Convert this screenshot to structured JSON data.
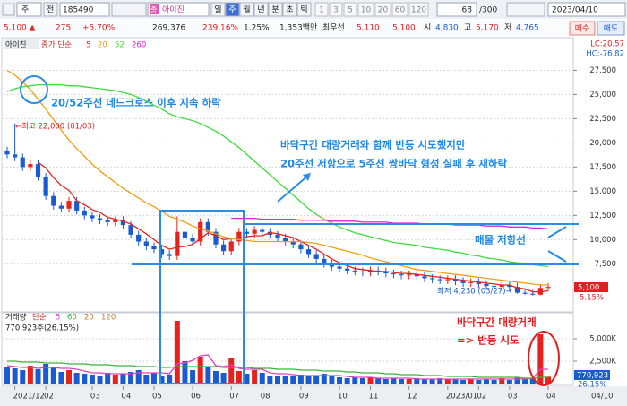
{
  "toolbar": {
    "market": "주",
    "scope": "전",
    "code": "185490",
    "name_badge": "종",
    "name": "아이진",
    "periods": [
      "일",
      "주",
      "월",
      "년",
      "분",
      "초",
      "틱"
    ],
    "intervals": [
      "1",
      "3",
      "5",
      "10",
      "20",
      "60",
      "120"
    ],
    "count": "68",
    "count_max": "/300",
    "date": "2023/04/10"
  },
  "quote": {
    "price": "5,100 ▲",
    "change": "275",
    "change_pct": "+5.70%",
    "volume": "269,376",
    "volume_ratio": "239.16%",
    "turnover": "1.25%",
    "amount": "1,353백만",
    "best_label": "최우선",
    "best_ask": "5,110",
    "best_bid": "5,100",
    "open_label": "시",
    "open": "4,830",
    "high_label": "고",
    "high": "5,170",
    "low_label": "저",
    "low": "4,765",
    "buy": "매수",
    "sell": "매도"
  },
  "chart_data": [
    {
      "type": "candlestick",
      "title": "아이진",
      "ma_label": "종가 단순",
      "up_color": "#e8211f",
      "down_color": "#1a5bd1",
      "open": [
        19200,
        18800,
        18500,
        17500,
        17800,
        16500,
        14500,
        13500,
        13200,
        14000,
        13000,
        12500,
        12200,
        12000,
        11800,
        12000,
        11500,
        10500,
        9800,
        9300,
        9000,
        8500,
        8300,
        10800,
        10200,
        9800,
        11800,
        10800,
        9500,
        8800,
        9800,
        10800,
        10600,
        11000,
        10800,
        10500,
        10200,
        9800,
        9500,
        9000,
        8500,
        8000,
        7500,
        7200,
        7000,
        6800,
        6700,
        6600,
        6800,
        6700,
        6500,
        6400,
        6300,
        6400,
        6200,
        6000,
        5900,
        5800,
        5900,
        5700,
        5500,
        5600,
        5400,
        5200,
        5100,
        5300,
        5100,
        4500,
        4400,
        4300,
        5000
      ],
      "high": [
        19600,
        22000,
        18900,
        18200,
        18200,
        16900,
        14900,
        13900,
        14400,
        14400,
        13400,
        12900,
        12600,
        12400,
        12400,
        12400,
        11900,
        10900,
        10200,
        9700,
        9400,
        8900,
        12400,
        11200,
        10600,
        12200,
        12200,
        11200,
        9900,
        10200,
        11200,
        11200,
        11400,
        11400,
        11200,
        10900,
        10600,
        10200,
        9900,
        9400,
        8900,
        8400,
        7900,
        7600,
        7400,
        7200,
        7100,
        7200,
        7200,
        7100,
        6900,
        6800,
        6800,
        6800,
        6600,
        6400,
        6300,
        6300,
        6300,
        6100,
        6000,
        6000,
        5800,
        5600,
        5700,
        5700,
        5500,
        4900,
        4800,
        5400,
        5500
      ],
      "low": [
        18400,
        18100,
        17100,
        17100,
        16100,
        14100,
        13100,
        12800,
        12800,
        12600,
        12100,
        11800,
        11600,
        11400,
        11400,
        11100,
        10100,
        9400,
        8900,
        8600,
        8100,
        7900,
        7900,
        9800,
        9400,
        9400,
        10400,
        9100,
        8400,
        8400,
        9400,
        10200,
        10200,
        10400,
        10100,
        9800,
        9400,
        9100,
        8600,
        8100,
        7600,
        7100,
        6800,
        6600,
        6400,
        6300,
        6200,
        6200,
        6300,
        6100,
        6000,
        5900,
        5900,
        5800,
        5600,
        5500,
        5400,
        5400,
        5300,
        5100,
        5100,
        5000,
        4800,
        4700,
        4700,
        4700,
        4400,
        4300,
        4230,
        4250,
        4700
      ],
      "close": [
        18800,
        18500,
        17500,
        17800,
        16500,
        14500,
        13500,
        13200,
        14000,
        13000,
        12500,
        12200,
        12000,
        11800,
        12000,
        11500,
        10500,
        9800,
        9300,
        9000,
        8500,
        8300,
        10800,
        10200,
        9800,
        11800,
        10800,
        9500,
        8800,
        9800,
        10800,
        10600,
        11000,
        10800,
        10500,
        10200,
        9800,
        9500,
        9000,
        8500,
        8000,
        7500,
        7200,
        7000,
        6800,
        6700,
        6600,
        6800,
        6700,
        6500,
        6400,
        6300,
        6400,
        6200,
        6000,
        5900,
        5800,
        5900,
        5700,
        5500,
        5600,
        5400,
        5200,
        5100,
        5300,
        5100,
        4500,
        4400,
        4300,
        5000,
        5100
      ],
      "series": [
        {
          "name": "5",
          "color": "#e8211f",
          "values": [
            null,
            null,
            null,
            null,
            18000,
            17400,
            16400,
            15600,
            15100,
            14000,
            13600,
            13100,
            12800,
            12300,
            12100,
            11900,
            11600,
            11100,
            10600,
            10000,
            9400,
            9000,
            9200,
            9300,
            9500,
            10100,
            10700,
            10400,
            10000,
            10100,
            10100,
            10300,
            10400,
            10400,
            10700,
            10600,
            10400,
            10200,
            9800,
            9400,
            9000,
            8500,
            8000,
            7600,
            7300,
            7000,
            6900,
            6800,
            6700,
            6700,
            6600,
            6500,
            6500,
            6400,
            6300,
            6200,
            6100,
            6000,
            5900,
            5800,
            5700,
            5600,
            5500,
            5400,
            5300,
            5300,
            5000,
            4900,
            4600,
            4600,
            4700
          ]
        },
        {
          "name": "20",
          "color": "#f39c12",
          "values": [
            27500,
            27000,
            26300,
            25500,
            24500,
            23500,
            22400,
            21300,
            20300,
            19400,
            18600,
            17800,
            17100,
            16500,
            15900,
            15300,
            14800,
            14300,
            13800,
            13400,
            12900,
            12400,
            12100,
            11800,
            11400,
            11100,
            10900,
            10600,
            10300,
            10100,
            10000,
            9900,
            9800,
            9800,
            9800,
            9800,
            9800,
            9800,
            9800,
            9700,
            9600,
            9400,
            9200,
            9000,
            8800,
            8600,
            8400,
            8100,
            7900,
            7700,
            7500,
            7300,
            7100,
            6900,
            6800,
            6700,
            6600,
            6500,
            6400,
            6300,
            6200,
            6100,
            6000,
            5900,
            5800,
            5700,
            5600,
            5500,
            5400,
            5300,
            5300
          ]
        },
        {
          "name": "52",
          "color": "#3ddc3d",
          "values": [
            25300,
            25600,
            25800,
            25900,
            26000,
            26000,
            26000,
            26000,
            25900,
            25900,
            25800,
            25700,
            25600,
            25500,
            25400,
            25200,
            25000,
            24700,
            24300,
            23900,
            23500,
            23000,
            22700,
            22500,
            22300,
            22000,
            21600,
            21200,
            20700,
            20100,
            19500,
            18800,
            18100,
            17400,
            16700,
            16000,
            15300,
            14600,
            13900,
            13200,
            12600,
            12100,
            11700,
            11300,
            11000,
            10700,
            10500,
            10300,
            10100,
            9900,
            9700,
            9600,
            9500,
            9400,
            9200,
            9100,
            9000,
            8900,
            8700,
            8600,
            8400,
            8300,
            8100,
            8000,
            7900,
            7700,
            7600,
            7500,
            7400,
            7300,
            7200
          ]
        },
        {
          "name": "260",
          "color": "#e020e0",
          "values": [
            null,
            null,
            null,
            null,
            null,
            null,
            null,
            null,
            null,
            null,
            null,
            null,
            null,
            null,
            null,
            null,
            null,
            null,
            null,
            null,
            null,
            null,
            null,
            null,
            null,
            null,
            null,
            null,
            null,
            12200,
            12200,
            12200,
            12200,
            12100,
            12100,
            12100,
            12100,
            12100,
            12000,
            12000,
            12000,
            12000,
            11900,
            11900,
            11900,
            11900,
            11800,
            11800,
            11800,
            11800,
            11700,
            11700,
            11700,
            11700,
            11600,
            11600,
            11600,
            11600,
            11500,
            11500,
            11500,
            11500,
            11400,
            11400,
            11400,
            11300,
            11300,
            11300,
            11200,
            11200,
            11100
          ]
        }
      ],
      "ylim": [
        2800,
        30600
      ],
      "yticks": [
        {
          "value": 7500,
          "label": "7,500"
        },
        {
          "value": 10000,
          "label": "10,000"
        },
        {
          "value": 12500,
          "label": "12,500"
        },
        {
          "value": 15000,
          "label": "15,000"
        },
        {
          "value": 17500,
          "label": "17,500"
        },
        {
          "value": 20000,
          "label": "20,000"
        },
        {
          "value": 22500,
          "label": "22,500"
        },
        {
          "value": 25000,
          "label": "25,000"
        },
        {
          "value": 27500,
          "label": "27,500"
        }
      ],
      "grid": true,
      "lc": "LC:20.57",
      "hc": "HC:-76.82",
      "last_label": "5,100",
      "last_pct": "5.15%",
      "annotations": [
        "20/52주선 데드크로스 이후 지속 하락",
        "←최고 22,000 (01/03)",
        "바닥구간 대량거래와 함께 반등 시도했지만",
        "20주선 저항으로 5주선 쌍바닥 형성 실패 후 재하락",
        "매물 저항선",
        "최저 4,230 (03/27)→"
      ]
    },
    {
      "type": "bar",
      "title": "거래량",
      "ma_label": "단순",
      "ma_extra": [
        "20",
        "120"
      ],
      "info": "770,923주(26.15%)",
      "last_label": "770,923",
      "last_pct": "26.15%",
      "end_date": "04/10",
      "categories": [
        null,
        "2021/12",
        null,
        null,
        null,
        "02",
        null,
        null,
        null,
        null,
        null,
        "03",
        null,
        null,
        null,
        "04",
        null,
        null,
        null,
        "05",
        null,
        null,
        null,
        null,
        "06",
        null,
        null,
        null,
        null,
        "07",
        null,
        null,
        null,
        "08",
        null,
        null,
        null,
        null,
        "09",
        null,
        null,
        null,
        null,
        "10",
        null,
        null,
        null,
        "11",
        null,
        null,
        null,
        null,
        "12",
        null,
        null,
        null,
        null,
        "2023/01",
        null,
        null,
        null,
        "02",
        null,
        null,
        null,
        "03",
        null,
        null,
        null,
        null,
        "04"
      ],
      "values": [
        1900000,
        1700000,
        1500000,
        2000000,
        1600000,
        2200000,
        1800000,
        1300000,
        1500000,
        1200000,
        1100000,
        1000000,
        900000,
        1200000,
        1000000,
        1100000,
        1300000,
        1500000,
        1000000,
        1200000,
        900000,
        1000000,
        7000000,
        2500000,
        1500000,
        3000000,
        1800000,
        1400000,
        1200000,
        2900000,
        1400000,
        1100000,
        1500000,
        1200000,
        900000,
        900000,
        800000,
        900000,
        1000000,
        800000,
        900000,
        1100000,
        800000,
        700000,
        600000,
        700000,
        600000,
        700000,
        600000,
        500000,
        600000,
        500000,
        500000,
        600000,
        500000,
        500000,
        600000,
        500000,
        500000,
        400000,
        500000,
        400000,
        500000,
        400000,
        600000,
        400000,
        700000,
        500000,
        600000,
        5500000,
        770923
      ],
      "series": [
        {
          "name": "5",
          "color": "#e040c0",
          "values": [
            2000000,
            1900000,
            1800000,
            1800000,
            1700000,
            1800000,
            1800000,
            1700000,
            1700000,
            1600000,
            1400000,
            1200000,
            1200000,
            1100000,
            1100000,
            1100000,
            1100000,
            1200000,
            1200000,
            1200000,
            1200000,
            1100000,
            2200000,
            2300000,
            2600000,
            3100000,
            3200000,
            2000000,
            1900000,
            2100000,
            1700000,
            1600000,
            1600000,
            1600000,
            1200000,
            1100000,
            1100000,
            1000000,
            900000,
            900000,
            900000,
            900000,
            900000,
            900000,
            800000,
            700000,
            700000,
            700000,
            600000,
            600000,
            600000,
            600000,
            600000,
            500000,
            500000,
            500000,
            500000,
            500000,
            500000,
            500000,
            500000,
            500000,
            500000,
            500000,
            500000,
            500000,
            500000,
            500000,
            600000,
            1600000,
            1600000
          ]
        },
        {
          "name": "60",
          "color": "#3cb43c",
          "values": [
            2500000,
            2500000,
            2400000,
            2400000,
            2400000,
            2300000,
            2300000,
            2300000,
            2200000,
            2200000,
            2200000,
            2100000,
            2100000,
            2100000,
            2000000,
            2000000,
            2000000,
            1900000,
            1900000,
            1900000,
            1800000,
            1800000,
            1900000,
            1900000,
            1900000,
            1900000,
            1900000,
            1900000,
            1800000,
            1800000,
            1800000,
            1800000,
            1700000,
            1700000,
            1700000,
            1600000,
            1600000,
            1600000,
            1500000,
            1500000,
            1500000,
            1400000,
            1400000,
            1400000,
            1300000,
            1300000,
            1200000,
            1200000,
            1200000,
            1100000,
            1100000,
            1000000,
            1000000,
            1000000,
            900000,
            900000,
            900000,
            800000,
            800000,
            800000,
            800000,
            700000,
            700000,
            700000,
            700000,
            700000,
            700000,
            600000,
            600000,
            700000,
            700000
          ]
        }
      ],
      "ylim": [
        0,
        7800000
      ],
      "yticks": [
        {
          "value": 2500000,
          "label": "2,500K"
        },
        {
          "value": 5000000,
          "label": "5,000K"
        }
      ],
      "grid": true,
      "annotations": [
        "바닥구간 대량거래",
        "=> 반등 시도"
      ]
    }
  ]
}
